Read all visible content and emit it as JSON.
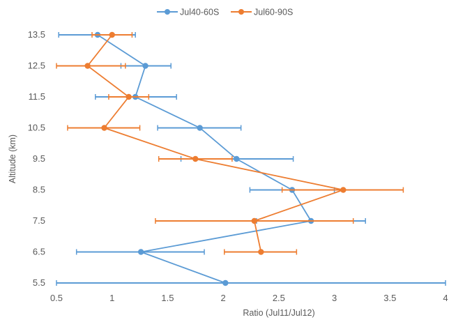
{
  "chart_data": {
    "type": "scatter",
    "xlabel": "Ratio (Jul11/Jul12)",
    "ylabel": "Altitude (km)",
    "xlim": [
      0.5,
      4
    ],
    "ylim": [
      5.5,
      13.5
    ],
    "x_ticks": [
      "0.5",
      "1",
      "1.5",
      "2",
      "2.5",
      "3",
      "3.5",
      "4"
    ],
    "y_ticks": [
      "5.5",
      "6.5",
      "7.5",
      "8.5",
      "9.5",
      "10.5",
      "11.5",
      "12.5",
      "13.5"
    ],
    "legend_position": "top",
    "grid": false,
    "error_bars": "horizontal",
    "series": [
      {
        "name": "Jul40-60S",
        "color": "#5B9BD5",
        "points": [
          {
            "x": 2.02,
            "y": 5.5,
            "err_low": 0.5,
            "err_high": 4.0
          },
          {
            "x": 1.26,
            "y": 6.5,
            "err_low": 0.68,
            "err_high": 1.83
          },
          {
            "x": 2.79,
            "y": 7.5,
            "err_low": 2.3,
            "err_high": 3.28
          },
          {
            "x": 2.62,
            "y": 8.5,
            "err_low": 2.24,
            "err_high": 3.0
          },
          {
            "x": 2.12,
            "y": 9.5,
            "err_low": 1.62,
            "err_high": 2.63
          },
          {
            "x": 1.79,
            "y": 10.5,
            "err_low": 1.41,
            "err_high": 2.16
          },
          {
            "x": 1.21,
            "y": 11.5,
            "err_low": 0.85,
            "err_high": 1.58
          },
          {
            "x": 1.3,
            "y": 12.5,
            "err_low": 1.08,
            "err_high": 1.53
          },
          {
            "x": 0.87,
            "y": 13.5,
            "err_low": 0.52,
            "err_high": 1.21
          }
        ]
      },
      {
        "name": "Jul60-90S",
        "color": "#ED7D31",
        "points": [
          {
            "x": 2.34,
            "y": 6.5,
            "err_low": 2.01,
            "err_high": 2.66
          },
          {
            "x": 2.28,
            "y": 7.5,
            "err_low": 1.39,
            "err_high": 3.17
          },
          {
            "x": 3.08,
            "y": 8.5,
            "err_low": 2.53,
            "err_high": 3.62
          },
          {
            "x": 1.75,
            "y": 9.5,
            "err_low": 1.42,
            "err_high": 2.08
          },
          {
            "x": 0.93,
            "y": 10.5,
            "err_low": 0.6,
            "err_high": 1.25
          },
          {
            "x": 1.15,
            "y": 11.5,
            "err_low": 0.97,
            "err_high": 1.33
          },
          {
            "x": 0.78,
            "y": 12.5,
            "err_low": 0.5,
            "err_high": 1.12
          },
          {
            "x": 1.0,
            "y": 13.5,
            "err_low": 0.82,
            "err_high": 1.18
          }
        ]
      }
    ]
  }
}
